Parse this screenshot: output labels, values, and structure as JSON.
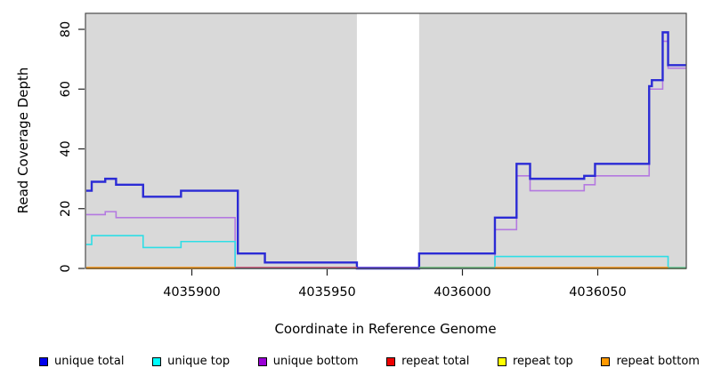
{
  "chart_data": {
    "type": "line",
    "subtype": "step",
    "title": "",
    "xlabel": "Coordinate in Reference Genome",
    "ylabel": "Read Coverage Depth",
    "xlim": [
      4035861,
      4036083
    ],
    "ylim": [
      0,
      84
    ],
    "x_ticks": [
      4035900,
      4035950,
      4036000,
      4036050
    ],
    "y_ticks": [
      0,
      20,
      40,
      60,
      80
    ],
    "grid": "off",
    "legend_position": "bottom",
    "plot_bg": "#D9D9D9",
    "gap_region": {
      "x_start": 4035961,
      "x_end": 4035984
    },
    "series": [
      {
        "name": "repeat total",
        "color": "#EE0000",
        "width": 1.4,
        "steps": [
          [
            4035861,
            0
          ]
        ],
        "x_end": 4036083
      },
      {
        "name": "repeat top",
        "color": "#FFFF00",
        "width": 1.4,
        "steps": [
          [
            4035861,
            0
          ]
        ],
        "x_end": 4036083
      },
      {
        "name": "repeat bottom",
        "color": "#FF9912",
        "width": 1.6,
        "steps": [
          [
            4035861,
            0
          ]
        ],
        "x_end": 4036083
      },
      {
        "name": "unique bottom",
        "color": "#B479E0",
        "width": 1.6,
        "steps": [
          [
            4035861,
            18
          ],
          [
            4035868,
            19
          ],
          [
            4035872,
            17
          ],
          [
            4035916,
            0
          ],
          [
            4036012,
            13
          ],
          [
            4036020,
            31
          ],
          [
            4036025,
            26
          ],
          [
            4036045,
            28
          ],
          [
            4036049,
            31
          ],
          [
            4036069,
            60
          ],
          [
            4036074,
            76
          ],
          [
            4036076,
            67
          ]
        ],
        "x_end": 4036083
      },
      {
        "name": "unique top",
        "color": "#2EDEE6",
        "width": 1.6,
        "steps": [
          [
            4035861,
            8
          ],
          [
            4035863,
            11
          ],
          [
            4035882,
            7
          ],
          [
            4035896,
            9
          ],
          [
            4035916,
            0
          ],
          [
            4036012,
            4
          ],
          [
            4036076,
            0
          ]
        ],
        "x_end": 4036083
      },
      {
        "name": "unique total",
        "color": "#2B2BD5",
        "width": 2.4,
        "steps": [
          [
            4035861,
            26
          ],
          [
            4035863,
            29
          ],
          [
            4035868,
            30
          ],
          [
            4035872,
            28
          ],
          [
            4035882,
            24
          ],
          [
            4035896,
            26
          ],
          [
            4035917,
            5
          ],
          [
            4035927,
            2
          ],
          [
            4035961,
            0
          ],
          [
            4035984,
            5
          ],
          [
            4036012,
            17
          ],
          [
            4036020,
            35
          ],
          [
            4036025,
            30
          ],
          [
            4036045,
            31
          ],
          [
            4036049,
            35
          ],
          [
            4036069,
            61
          ],
          [
            4036070,
            63
          ],
          [
            4036074,
            79
          ],
          [
            4036076,
            68
          ]
        ],
        "x_end": 4036083
      }
    ],
    "zero_line_segments": [
      {
        "x_start": 4035861,
        "x_end": 4035916,
        "color": "#FF9912"
      },
      {
        "x_start": 4035916,
        "x_end": 4035961,
        "color": "#CC5577"
      },
      {
        "x_start": 4035961,
        "x_end": 4035984,
        "color": "#5A3BE8"
      },
      {
        "x_start": 4035984,
        "x_end": 4036012,
        "color": "#6FBE7F"
      },
      {
        "x_start": 4036012,
        "x_end": 4036076,
        "color": "#FF9912"
      },
      {
        "x_start": 4036076,
        "x_end": 4036083,
        "color": "#6FCF97"
      }
    ],
    "legend": [
      {
        "label": "unique total",
        "color": "#0000EE"
      },
      {
        "label": "unique top",
        "color": "#00FFFF"
      },
      {
        "label": "unique bottom",
        "color": "#9A00D6"
      },
      {
        "label": "repeat total",
        "color": "#EE0000"
      },
      {
        "label": "repeat top",
        "color": "#FFFF00"
      },
      {
        "label": "repeat bottom",
        "color": "#FF9900"
      }
    ]
  }
}
